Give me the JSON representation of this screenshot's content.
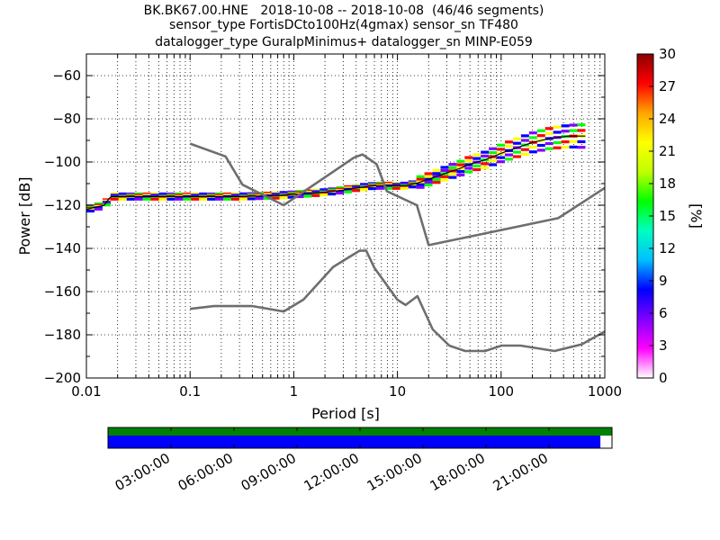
{
  "title": {
    "line1": "BK.BK67.00.HNE   2018-10-08 -- 2018-10-08  (46/46 segments)",
    "line2": "sensor_type FortisDCto100Hz(4gmax) sensor_sn TF480",
    "line3": "datalogger_type GuralpMinimus+ datalogger_sn MINP-E059"
  },
  "chart_data": {
    "type": "heatmap",
    "title": "BK.BK67.00.HNE   2018-10-08 -- 2018-10-08  (46/46 segments)",
    "xlabel": "Period [s]",
    "ylabel": "Power [dB]",
    "xscale": "log",
    "xlim": [
      0.01,
      1000
    ],
    "ylim": [
      -200,
      -50
    ],
    "xticks": [
      0.01,
      0.1,
      1,
      10,
      100,
      1000
    ],
    "xtick_labels": [
      "0.01",
      "0.1",
      "1",
      "10",
      "100",
      "1000"
    ],
    "yticks": [
      -60,
      -80,
      -100,
      -120,
      -140,
      -160,
      -180,
      -200
    ],
    "ytick_labels": [
      "−60",
      "−80",
      "−100",
      "−120",
      "−140",
      "−160",
      "−180",
      "−200"
    ],
    "grid": "dotted",
    "colorbar": {
      "label": "[%]",
      "range": [
        0,
        30
      ],
      "ticks": [
        0,
        3,
        6,
        9,
        12,
        15,
        18,
        21,
        24,
        27,
        30
      ],
      "tick_labels": [
        "0",
        "3",
        "6",
        "9",
        "12",
        "15",
        "18",
        "21",
        "24",
        "27",
        "30"
      ],
      "colors": [
        "#ffffff",
        "#ff00ff",
        "#7f00ff",
        "#0000ff",
        "#00bfff",
        "#00ffbf",
        "#00ff00",
        "#bfff00",
        "#ffff00",
        "#ffa500",
        "#ff0000",
        "#8b0000"
      ]
    },
    "psd_band": [
      {
        "period": 0.01,
        "db": -122
      },
      {
        "period": 0.012,
        "db": -121
      },
      {
        "period": 0.015,
        "db": -120
      },
      {
        "period": 0.017,
        "db": -116
      },
      {
        "period": 0.02,
        "db": -116
      },
      {
        "period": 0.05,
        "db": -116
      },
      {
        "period": 0.1,
        "db": -116
      },
      {
        "period": 0.3,
        "db": -116
      },
      {
        "period": 0.7,
        "db": -115.5
      },
      {
        "period": 1,
        "db": -115
      },
      {
        "period": 1.5,
        "db": -114.5
      },
      {
        "period": 2,
        "db": -114
      },
      {
        "period": 3,
        "db": -113
      },
      {
        "period": 4,
        "db": -112
      },
      {
        "period": 6,
        "db": -111
      },
      {
        "period": 8,
        "db": -111
      },
      {
        "period": 10,
        "db": -111
      },
      {
        "period": 12,
        "db": -111
      },
      {
        "period": 15,
        "db": -110
      },
      {
        "period": 20,
        "db": -108
      },
      {
        "period": 30,
        "db": -105
      },
      {
        "period": 40,
        "db": -103
      },
      {
        "period": 50,
        "db": -101
      },
      {
        "period": 70,
        "db": -99
      },
      {
        "period": 100,
        "db": -96
      },
      {
        "period": 150,
        "db": -93
      },
      {
        "period": 200,
        "db": -91
      },
      {
        "period": 300,
        "db": -89
      },
      {
        "period": 450,
        "db": -88
      },
      {
        "period": 650,
        "db": -88
      }
    ],
    "band_spread": 3,
    "nhnm": [
      {
        "period": 0.1,
        "db": -91.5
      },
      {
        "period": 0.22,
        "db": -97.4
      },
      {
        "period": 0.32,
        "db": -110.5
      },
      {
        "period": 0.8,
        "db": -120
      },
      {
        "period": 3.8,
        "db": -98
      },
      {
        "period": 4.6,
        "db": -96.5
      },
      {
        "period": 6.3,
        "db": -101
      },
      {
        "period": 7.9,
        "db": -113.5
      },
      {
        "period": 15.4,
        "db": -120
      },
      {
        "period": 20,
        "db": -138.5
      },
      {
        "period": 354.8,
        "db": -126
      },
      {
        "period": 1000,
        "db": -112
      }
    ],
    "nlnm": [
      {
        "period": 0.1,
        "db": -168
      },
      {
        "period": 0.17,
        "db": -166.7
      },
      {
        "period": 0.4,
        "db": -166.7
      },
      {
        "period": 0.8,
        "db": -169.2
      },
      {
        "period": 1.24,
        "db": -163.7
      },
      {
        "period": 2.4,
        "db": -148.6
      },
      {
        "period": 4.3,
        "db": -141.1
      },
      {
        "period": 5,
        "db": -141.1
      },
      {
        "period": 6,
        "db": -149
      },
      {
        "period": 10,
        "db": -163.8
      },
      {
        "period": 12,
        "db": -166.2
      },
      {
        "period": 15.6,
        "db": -162.1
      },
      {
        "period": 21.9,
        "db": -177.5
      },
      {
        "period": 31.6,
        "db": -185
      },
      {
        "period": 45,
        "db": -187.5
      },
      {
        "period": 70,
        "db": -187.5
      },
      {
        "period": 101,
        "db": -185
      },
      {
        "period": 154,
        "db": -185
      },
      {
        "period": 328,
        "db": -187.5
      },
      {
        "period": 600,
        "db": -184.4
      },
      {
        "period": 1000,
        "db": -178.5
      }
    ]
  },
  "coverage": {
    "tick_labels": [
      "03:00:00",
      "06:00:00",
      "09:00:00",
      "12:00:00",
      "15:00:00",
      "18:00:00",
      "21:00:00"
    ],
    "data_fraction": 0.977,
    "top_color": "#008000",
    "data_color": "#0000ff"
  }
}
